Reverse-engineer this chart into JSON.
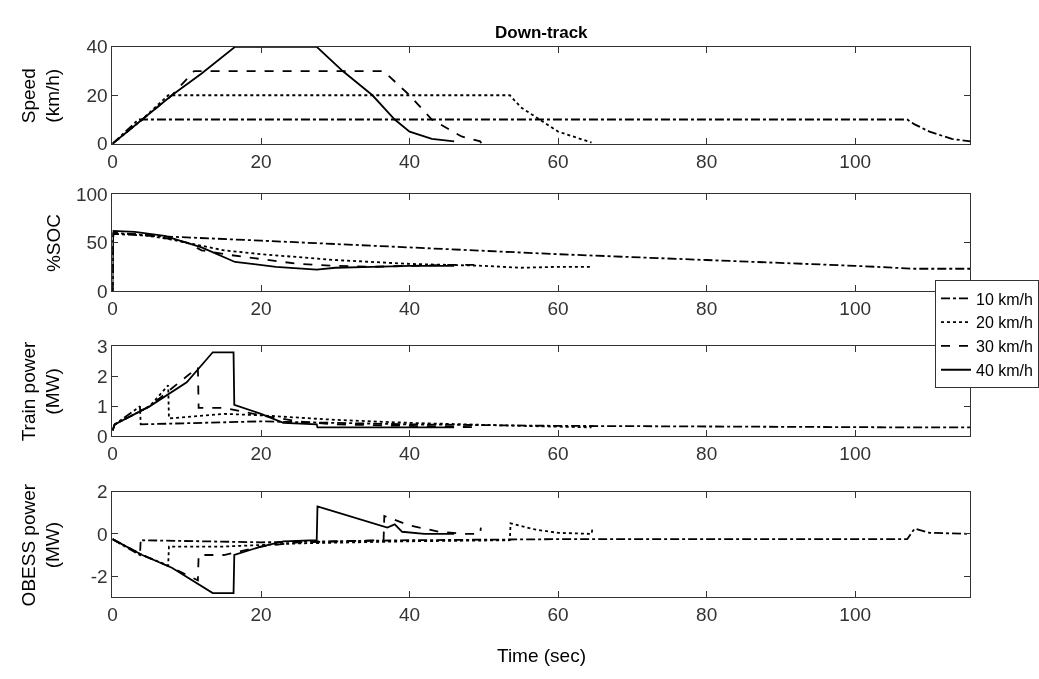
{
  "chart_data": [
    {
      "type": "line",
      "title": "Down-track",
      "ylabel": "Speed\n(km/h)",
      "xlim": [
        0,
        115.5
      ],
      "xticks": [
        0,
        20,
        40,
        60,
        80,
        100
      ],
      "ylim": [
        0,
        40
      ],
      "yticks": [
        0,
        20,
        40
      ],
      "series": [
        {
          "color": "#000000",
          "line_style": "dashdot",
          "x": [
            0,
            3.5,
            107,
            108,
            110,
            113,
            115.5
          ],
          "values": [
            0,
            10,
            10,
            8,
            5,
            2,
            1
          ]
        },
        {
          "color": "#000000",
          "line_style": "dotted",
          "x": [
            0,
            4,
            7.5,
            53.5,
            55,
            57.5,
            60,
            64.5
          ],
          "values": [
            0,
            10,
            20,
            20,
            15,
            10,
            5,
            0.5
          ]
        },
        {
          "color": "#000000",
          "line_style": "dashed",
          "x": [
            0,
            4,
            8,
            11,
            36.5,
            40,
            43,
            47,
            49.5,
            49.7
          ],
          "values": [
            0,
            10,
            20,
            30,
            30,
            20,
            10,
            3,
            1,
            0
          ]
        },
        {
          "color": "#000000",
          "line_style": "solid",
          "x": [
            0,
            4,
            8,
            12,
            16.5,
            27.5,
            31,
            35,
            38,
            40,
            43,
            46
          ],
          "values": [
            0,
            10,
            20,
            29,
            40,
            40,
            30,
            20,
            10,
            5,
            2,
            1
          ]
        }
      ]
    },
    {
      "type": "line",
      "ylabel": "%SOC",
      "xlim": [
        0,
        115.5
      ],
      "xticks": [
        0,
        20,
        40,
        60,
        80,
        100
      ],
      "ylim": [
        0,
        100
      ],
      "yticks": [
        0,
        50,
        100
      ],
      "series": [
        {
          "color": "#000000",
          "line_style": "dashdot",
          "x": [
            0,
            0.1,
            5,
            20,
            40,
            60,
            80,
            100,
            108,
            115.5
          ],
          "values": [
            0,
            59,
            57,
            52,
            45,
            38,
            32,
            26,
            23,
            23
          ]
        },
        {
          "color": "#000000",
          "line_style": "dotted",
          "x": [
            0,
            0.1,
            4,
            8,
            15,
            20,
            30,
            40,
            50,
            55,
            60,
            64.5
          ],
          "values": [
            0,
            60,
            58,
            53,
            42,
            38,
            32,
            28,
            26,
            24,
            25,
            25
          ]
        },
        {
          "color": "#000000",
          "line_style": "dashed",
          "x": [
            0,
            0.1,
            5,
            10,
            12,
            16,
            20,
            25,
            30,
            35,
            40,
            45,
            49.5
          ],
          "values": [
            0,
            60,
            58,
            50,
            42,
            37,
            33,
            28,
            26,
            25,
            26,
            27,
            27
          ]
        },
        {
          "color": "#000000",
          "line_style": "solid",
          "x": [
            0,
            0.1,
            3,
            7,
            12,
            16.5,
            22,
            27.5,
            30,
            35,
            40,
            46
          ],
          "values": [
            0,
            62,
            61,
            57,
            45,
            30,
            25,
            22,
            24,
            25,
            26,
            26
          ]
        }
      ]
    },
    {
      "type": "line",
      "ylabel": "Train power\n(MW)",
      "xlim": [
        0,
        115.5
      ],
      "xticks": [
        0,
        20,
        40,
        60,
        80,
        100
      ],
      "ylim": [
        0,
        3
      ],
      "yticks": [
        0,
        1,
        2,
        3
      ],
      "legend": "right",
      "series": [
        {
          "name": "10 km/h",
          "color": "#000000",
          "line_style": "dashdot",
          "x": [
            0,
            0.3,
            3.7,
            3.8,
            20,
            40,
            60,
            80,
            107,
            115.5
          ],
          "values": [
            0.2,
            0.4,
            1.0,
            0.4,
            0.5,
            0.4,
            0.35,
            0.33,
            0.3,
            0.3
          ]
        },
        {
          "name": "20 km/h",
          "color": "#000000",
          "line_style": "dotted",
          "x": [
            0,
            0.3,
            5,
            7.5,
            7.6,
            15,
            20,
            30,
            40,
            55,
            64.5
          ],
          "values": [
            0.2,
            0.4,
            1.0,
            1.7,
            0.6,
            0.75,
            0.7,
            0.55,
            0.45,
            0.35,
            0.3
          ]
        },
        {
          "name": "30 km/h",
          "color": "#000000",
          "line_style": "dashed",
          "x": [
            0,
            0.3,
            5,
            11.5,
            11.6,
            15,
            20,
            25,
            30,
            40,
            49.5
          ],
          "values": [
            0.2,
            0.4,
            1.0,
            2.3,
            0.95,
            0.95,
            0.7,
            0.5,
            0.4,
            0.35,
            0.3
          ]
        },
        {
          "name": "40 km/h",
          "color": "#000000",
          "line_style": "solid",
          "x": [
            0,
            0.3,
            5,
            10,
            13.5,
            16.3,
            16.4,
            20,
            23,
            27.5,
            27.6,
            46
          ],
          "values": [
            0.2,
            0.4,
            1.0,
            1.8,
            2.8,
            2.8,
            1.05,
            0.75,
            0.45,
            0.4,
            0.3,
            0.3
          ]
        }
      ]
    },
    {
      "type": "line",
      "ylabel": "OBESS power\n(MW)",
      "xlabel": "Time (sec)",
      "xlim": [
        0,
        115.5
      ],
      "xticks": [
        0,
        20,
        40,
        60,
        80,
        100
      ],
      "ylim": [
        -3,
        2
      ],
      "yticks": [
        -2,
        0,
        2
      ],
      "series": [
        {
          "color": "#000000",
          "line_style": "dashdot",
          "x": [
            0,
            3.7,
            3.8,
            20,
            40,
            60,
            80,
            107,
            107.5,
            108,
            110,
            115.5
          ],
          "values": [
            -0.25,
            -1.0,
            -0.3,
            -0.4,
            -0.3,
            -0.25,
            -0.25,
            -0.25,
            0.0,
            0.25,
            0.05,
            0.0
          ]
        },
        {
          "color": "#000000",
          "line_style": "dotted",
          "x": [
            0,
            4,
            7.5,
            7.6,
            15,
            25,
            40,
            53.5,
            53.6,
            57,
            60,
            64.5,
            64.6
          ],
          "values": [
            -0.25,
            -1.0,
            -1.5,
            -0.6,
            -0.6,
            -0.45,
            -0.35,
            -0.3,
            0.5,
            0.2,
            0.05,
            0.0,
            0.2
          ]
        },
        {
          "color": "#000000",
          "line_style": "dashed",
          "x": [
            0,
            4,
            8,
            11.5,
            11.6,
            15,
            20,
            25,
            36.5,
            36.6,
            40,
            44,
            47.5,
            49.5,
            49.6
          ],
          "values": [
            -0.25,
            -1.0,
            -1.6,
            -2.2,
            -1.0,
            -1.0,
            -0.6,
            -0.4,
            -0.3,
            0.85,
            0.4,
            0.1,
            0.0,
            0.0,
            0.3
          ]
        },
        {
          "color": "#000000",
          "line_style": "solid",
          "x": [
            0,
            4,
            8,
            13.5,
            16.3,
            16.4,
            20,
            23,
            27.5,
            27.6,
            37,
            38,
            39,
            42,
            46
          ],
          "values": [
            -0.25,
            -1.0,
            -1.6,
            -2.8,
            -2.8,
            -1.0,
            -0.6,
            -0.35,
            -0.3,
            1.3,
            0.3,
            0.45,
            0.1,
            0.0,
            0.0
          ]
        }
      ]
    }
  ]
}
